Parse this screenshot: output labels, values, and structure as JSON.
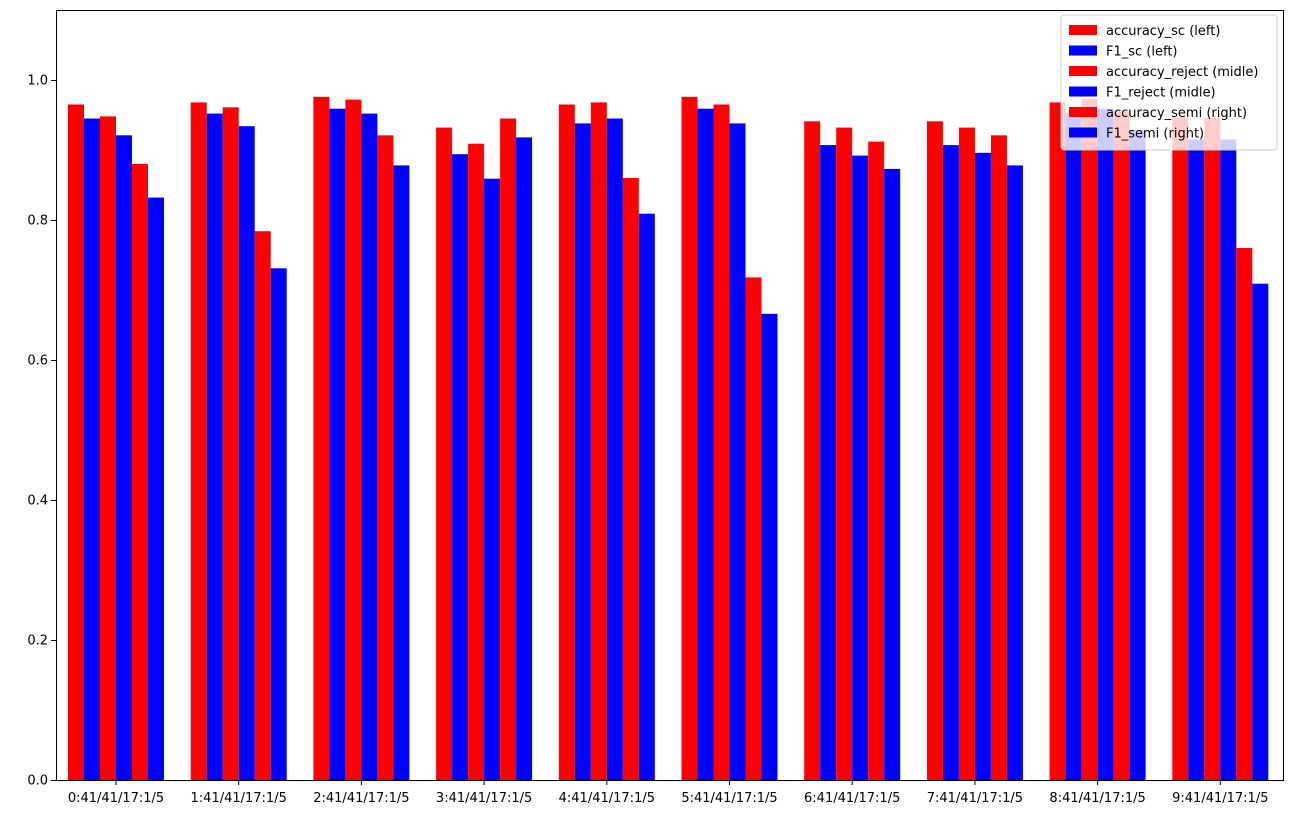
{
  "chart_data": {
    "type": "bar",
    "title": "",
    "xlabel": "",
    "ylabel": "",
    "ylim": [
      0,
      1.1
    ],
    "yticks": [
      "0.0",
      "0.2",
      "0.4",
      "0.6",
      "0.8",
      "1.0"
    ],
    "categories": [
      "0:41/41/17:1/5",
      "1:41/41/17:1/5",
      "2:41/41/17:1/5",
      "3:41/41/17:1/5",
      "4:41/41/17:1/5",
      "5:41/41/17:1/5",
      "6:41/41/17:1/5",
      "7:41/41/17:1/5",
      "8:41/41/17:1/5",
      "9:41/41/17:1/5"
    ],
    "series": [
      {
        "name": "accuracy_sc (left)",
        "color": "#ff0000",
        "values": [
          0.965,
          0.968,
          0.976,
          0.932,
          0.965,
          0.976,
          0.941,
          0.941,
          0.968,
          0.947
        ]
      },
      {
        "name": "F1_sc (left)",
        "color": "#0000ff",
        "values": [
          0.945,
          0.952,
          0.959,
          0.894,
          0.938,
          0.959,
          0.907,
          0.907,
          0.952,
          0.915
        ]
      },
      {
        "name": "accuracy_reject (midle)",
        "color": "#ff0000",
        "values": [
          0.948,
          0.961,
          0.972,
          0.909,
          0.968,
          0.965,
          0.932,
          0.932,
          0.973,
          0.946
        ]
      },
      {
        "name": "F1_reject (midle)",
        "color": "#0000ff",
        "values": [
          0.921,
          0.934,
          0.952,
          0.859,
          0.945,
          0.938,
          0.892,
          0.896,
          0.959,
          0.915
        ]
      },
      {
        "name": "accuracy_semi (right)",
        "color": "#ff0000",
        "values": [
          0.88,
          0.784,
          0.921,
          0.945,
          0.86,
          0.718,
          0.912,
          0.921,
          0.955,
          0.76
        ]
      },
      {
        "name": "F1_semi (right)",
        "color": "#0000ff",
        "values": [
          0.832,
          0.731,
          0.878,
          0.918,
          0.809,
          0.666,
          0.873,
          0.878,
          0.928,
          0.709
        ]
      }
    ],
    "legend_position": "top-right",
    "grid": false
  }
}
